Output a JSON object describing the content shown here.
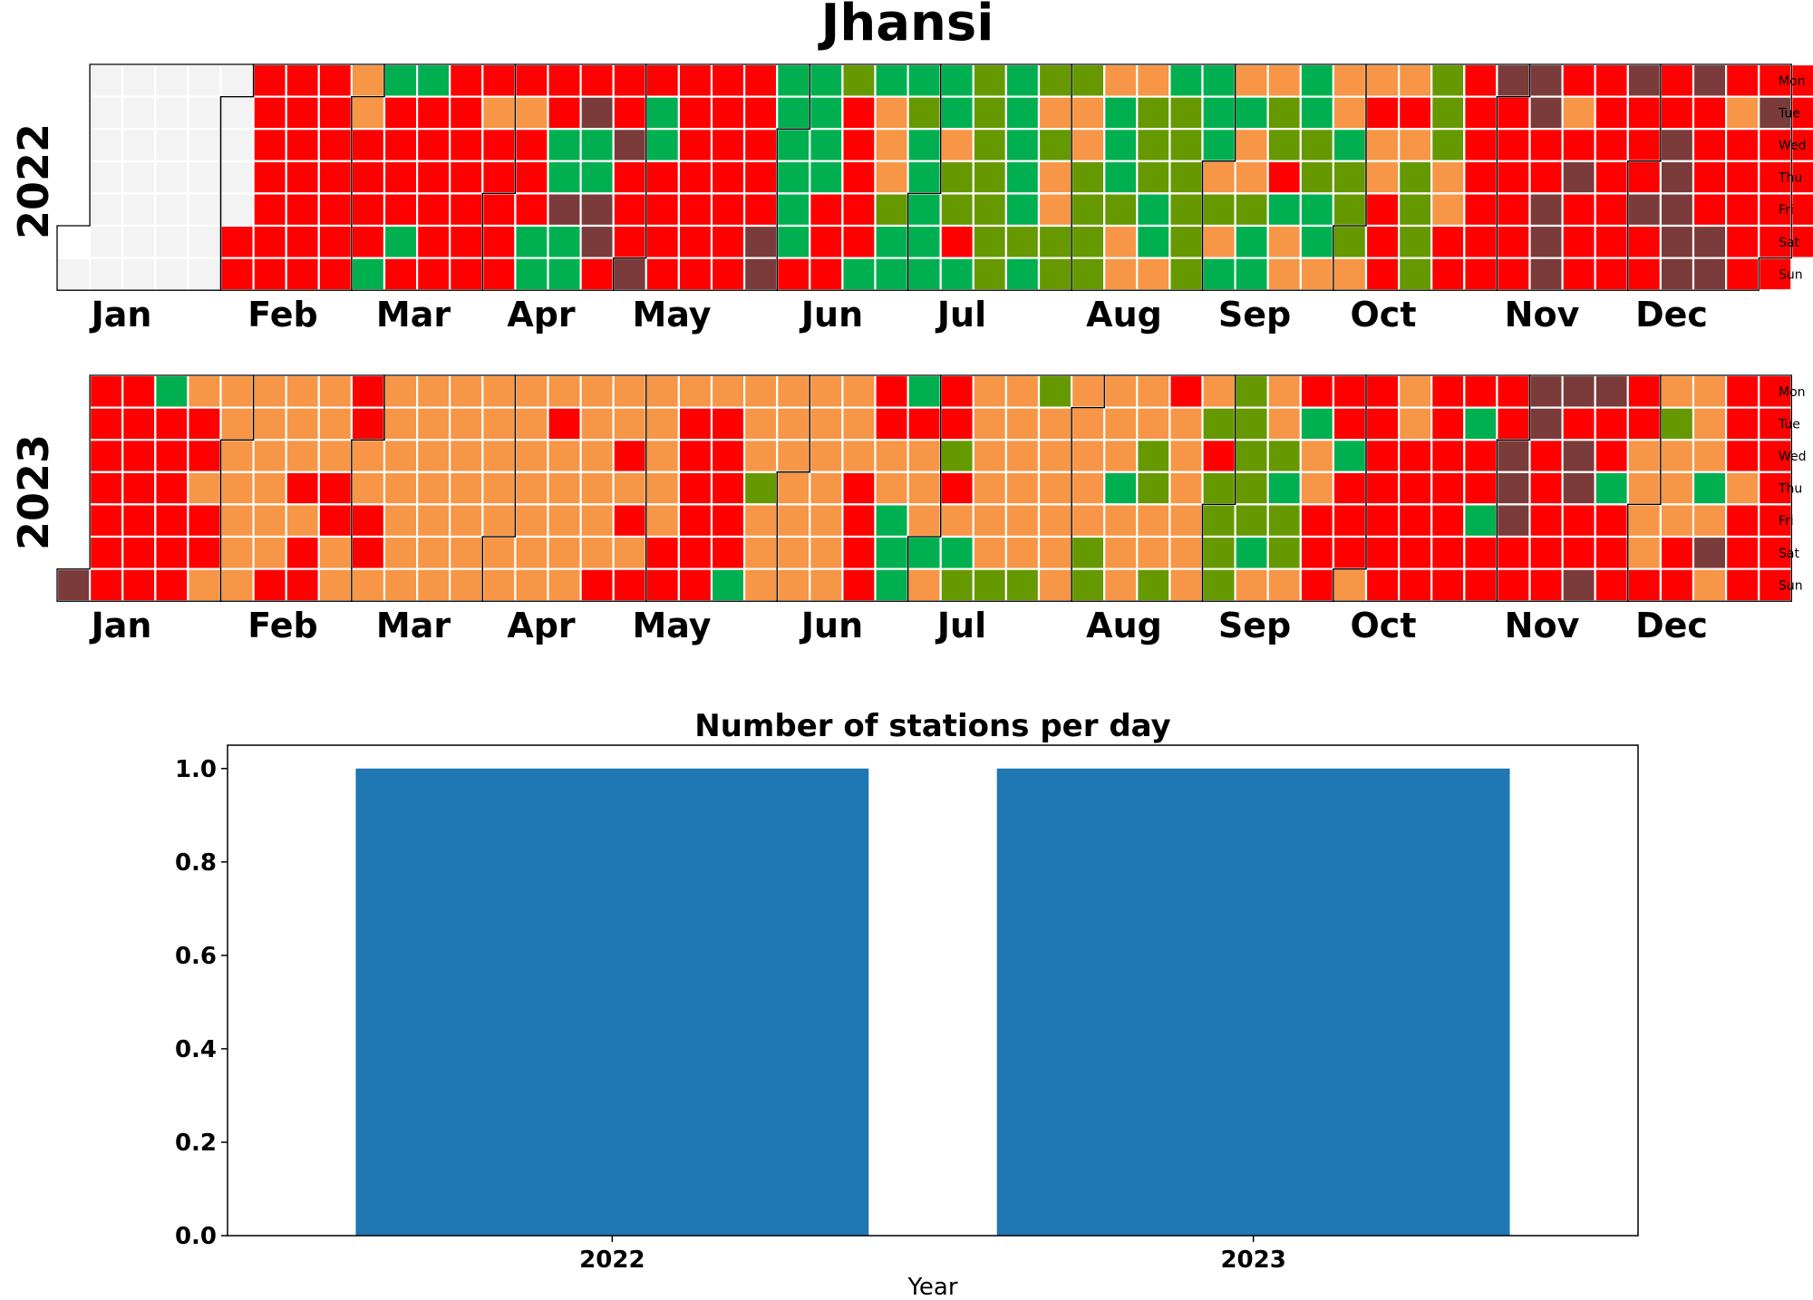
{
  "title": "Jhansi",
  "colors": {
    "good": "#00b050",
    "satisfactory": "#669900",
    "moderate": "#f79646",
    "poor": "#ff0000",
    "very_poor": "#7b3b3b",
    "no_data": "#f3f3f3",
    "bar": "#1f77b4"
  },
  "calendar": {
    "weekday_labels": [
      "Mon",
      "Tue",
      "Wed",
      "Thu",
      "Fri",
      "Sat",
      "Sun"
    ],
    "month_labels": [
      "Jan",
      "Feb",
      "Mar",
      "Apr",
      "May",
      "Jun",
      "Jul",
      "Aug",
      "Sep",
      "Oct",
      "Nov",
      "Dec"
    ],
    "category_codes": {
      "G": "good",
      "S": "satisfactory",
      "M": "moderate",
      "P": "poor",
      "V": "very_poor",
      "N": "no_data"
    },
    "years": [
      {
        "year": "2022",
        "days_by_week_column": [
          "......N",
          "NNNNNNN",
          "NNNNNNN",
          "NNNNNNN",
          "NNNNNNN",
          "NNNNNPP",
          "PPPPPPP",
          "PPPPPPP",
          "PPPPPPP",
          "MMPPPPG",
          "GPPPPGP",
          "GPPPPPP",
          "PPPPPPP",
          "PMPPPPP",
          "PMPPPGG",
          "PPGGVGG",
          "PVGGVVP",
          "PPVPPPV",
          "PGGPPPP",
          "PPPPPPP",
          "PPPPPPP",
          "PPPPPVV",
          "GGGGGGP",
          "GGGGPPP",
          "SPPPPPG",
          "GMMMSGG",
          "GSGGGGG",
          "GGMSSPG",
          "SSSSSSS",
          "GGGGGSG",
          "SMSMMSS",
          "SMMSSSS",
          "MGGGSMM",
          "MSSSGGM",
          "GSSSSSS",
          "GGGMSMG",
          "MGMMSGG",
          "MSSPGMM",
          "GGSSGGM",
          "MMGSSSM",
          "MPMMPPP",
          "MPMSSSS",
          "SSSMMPP",
          "PPPPPPP",
          "VPPPPPP",
          "VVPPVVV",
          "PMPVPPP",
          "PPPPPPP",
          "VPPPVPP",
          "PPVVVVV",
          "VPPPPVV",
          "PMPPPPP",
          "PVPPPPP",
          "PPPPPP."
        ]
      },
      {
        "year": "2023",
        "days_by_week_column": [
          "......V",
          "PPPPPPP",
          "PPPPPPP",
          "GPPPPPP",
          "MPPMPPM",
          "MMMMMMM",
          "MMMMMMP",
          "MMMPMPP",
          "MMMPPMM",
          "PPMMPPM",
          "MMMMMMM",
          "MMMMMMM",
          "MMMMMMM",
          "MMMMMMM",
          "MMMMMMM",
          "MPMMMMM",
          "MMMMMMP",
          "MMPMPMP",
          "MMMMMPP",
          "MPPPPPP",
          "MPPPPPG",
          "MMMSMMM",
          "MMMMMMM",
          "MMMMMMM",
          "MMMPPPP",
          "PPMMGGG",
          "GPMMMGM",
          "PPSPMGS",
          "MMMMMMS",
          "MMMMMMS",
          "SMMMMMM",
          "MMMMMSS",
          "MMMGMMM",
          "MMSSMMS",
          "PMMMMMM",
          "MSPSSSS",
          "SSSSSGM",
          "MMSGSSM",
          "PGMMPPP",
          "PPGPPPM",
          "PPPPPPP",
          "MMPPPPP",
          "PPPPPPP",
          "PGPPGPP",
          "PPVVVPP",
          "VVPPPPP",
          "VPVVPPV",
          "VPPGPPP",
          "PPMMMMP",
          "MSMMMPP",
          "MMMGMVM",
          "PPPMPPP",
          "PPPPPPP"
        ]
      }
    ]
  },
  "chart_data": {
    "type": "bar",
    "title": "Number of stations per day",
    "xlabel": "Year",
    "ylabel": "",
    "categories": [
      "2022",
      "2023"
    ],
    "values": [
      1,
      1
    ],
    "ylim": [
      0,
      1.05
    ],
    "yticks": [
      "0.0",
      "0.2",
      "0.4",
      "0.6",
      "0.8",
      "1.0"
    ],
    "grid": false
  }
}
